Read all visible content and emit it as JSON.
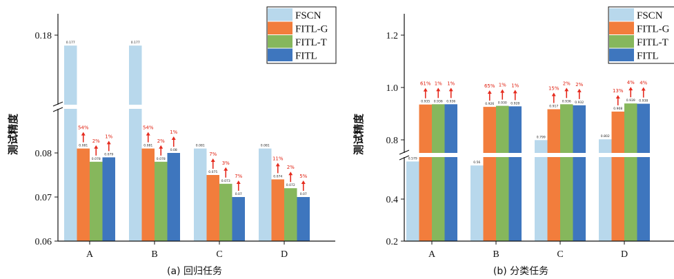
{
  "colors": {
    "FSCN": "#b8d8ec",
    "FITL-G": "#f27d3c",
    "FITL-T": "#86b75c",
    "FITL": "#3e76be",
    "arrow": "#e52b1e"
  },
  "chart_data": [
    {
      "type": "bar",
      "caption": "(a) 回归任务",
      "ylabel": "测试精度",
      "categories": [
        "A",
        "B",
        "C",
        "D"
      ],
      "axis_break": {
        "from": 0.09,
        "to": 0.16
      },
      "yticks": [
        "0.06",
        "0.07",
        "0.08",
        "0.18"
      ],
      "ylim": [
        0.06,
        0.18
      ],
      "legend_position": "top-right",
      "series": [
        {
          "name": "FSCN",
          "values": [
            0.177,
            0.177,
            0.081,
            0.081
          ],
          "labels": [
            "0.177",
            "0.177",
            "0.081",
            "0.081"
          ],
          "pct": [
            "",
            "",
            "",
            ""
          ]
        },
        {
          "name": "FITL-G",
          "values": [
            0.081,
            0.081,
            0.075,
            0.074
          ],
          "labels": [
            "0.081",
            "0.081",
            "0.075",
            "0.074"
          ],
          "pct": [
            "54%",
            "54%",
            "7%",
            "11%"
          ]
        },
        {
          "name": "FITL-T",
          "values": [
            0.078,
            0.078,
            0.073,
            0.072
          ],
          "labels": [
            "0.078",
            "0.078",
            "0.073",
            "0.072"
          ],
          "pct": [
            "2%",
            "2%",
            "3%",
            "2%"
          ]
        },
        {
          "name": "FITL",
          "values": [
            0.079,
            0.08,
            0.07,
            0.07
          ],
          "labels": [
            "0.079",
            "0.08",
            "0.07",
            "0.07"
          ],
          "pct": [
            "1%",
            "1%",
            "7%",
            "5%"
          ]
        }
      ]
    },
    {
      "type": "bar",
      "caption": "(b) 分类任务",
      "ylabel": "测试精度",
      "categories": [
        "A",
        "B",
        "C",
        "D"
      ],
      "axis_break": {
        "from": 0.6,
        "to": 0.75
      },
      "yticks": [
        "0.2",
        "0.4",
        "0.8",
        "1.0",
        "1.2"
      ],
      "ylim": [
        0.2,
        1.2
      ],
      "legend_position": "top-right",
      "series": [
        {
          "name": "FSCN",
          "values": [
            0.579,
            0.56,
            0.799,
            0.802
          ],
          "labels": [
            "0.579",
            "0.56",
            "0.799",
            "0.802"
          ],
          "pct": [
            "",
            "",
            "",
            ""
          ]
        },
        {
          "name": "FITL-G",
          "values": [
            0.935,
            0.926,
            0.917,
            0.908
          ],
          "labels": [
            "0.935",
            "0.926",
            "0.917",
            "0.908"
          ],
          "pct": [
            "61%",
            "65%",
            "15%",
            "13%"
          ]
        },
        {
          "name": "FITL-T",
          "values": [
            0.936,
            0.93,
            0.936,
            0.939
          ],
          "labels": [
            "0.936",
            "0.930",
            "0.936",
            "0.939"
          ],
          "pct": [
            "1%",
            "1%",
            "2%",
            "4%"
          ]
        },
        {
          "name": "FITL",
          "values": [
            0.936,
            0.928,
            0.932,
            0.938
          ],
          "labels": [
            "0.936",
            "0.928",
            "0.932",
            "0.938"
          ],
          "pct": [
            "1%",
            "1%",
            "2%",
            "4%"
          ]
        }
      ]
    }
  ]
}
